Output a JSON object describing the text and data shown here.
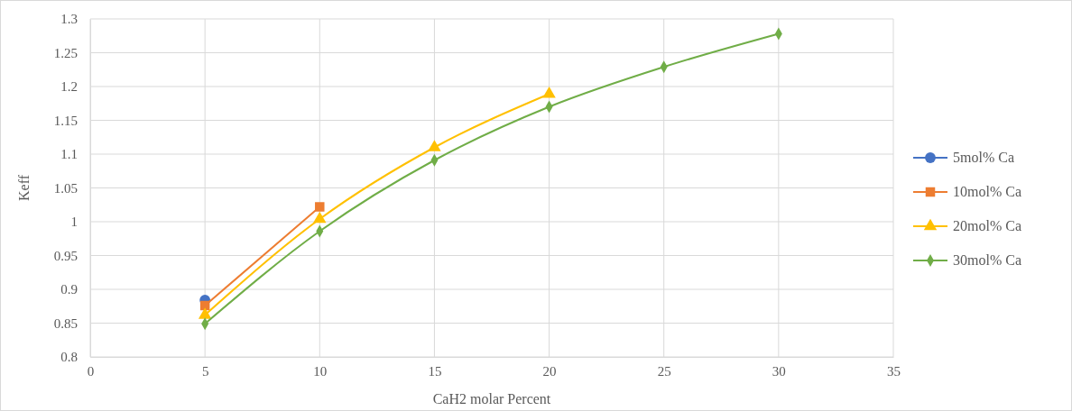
{
  "chart_data": {
    "type": "line",
    "xlabel": "CaH2 molar Percent",
    "ylabel": "Keff",
    "xlim": [
      0,
      35
    ],
    "xticks": [
      0,
      5,
      10,
      15,
      20,
      25,
      30,
      35
    ],
    "ylim": [
      0.8,
      1.3
    ],
    "yticks": [
      0.8,
      0.85,
      0.9,
      0.95,
      1,
      1.05,
      1.1,
      1.15,
      1.2,
      1.25,
      1.3
    ],
    "grid": true,
    "legend": "right",
    "series": [
      {
        "name": "5mol% Ca",
        "color": "#4472c4",
        "marker": "circle",
        "x": [
          5
        ],
        "values": [
          0.884
        ]
      },
      {
        "name": "10mol% Ca",
        "color": "#ed7d31",
        "marker": "square",
        "x": [
          5,
          10
        ],
        "values": [
          0.876,
          1.022
        ]
      },
      {
        "name": "20mol% Ca",
        "color": "#ffc000",
        "marker": "triangle",
        "x": [
          5,
          10,
          15,
          20
        ],
        "values": [
          0.862,
          1.004,
          1.11,
          1.189
        ]
      },
      {
        "name": "30mol% Ca",
        "color": "#70ad47",
        "marker": "diamond",
        "x": [
          5,
          10,
          15,
          20,
          25,
          30
        ],
        "values": [
          0.849,
          0.986,
          1.091,
          1.17,
          1.229,
          1.278
        ]
      }
    ]
  }
}
